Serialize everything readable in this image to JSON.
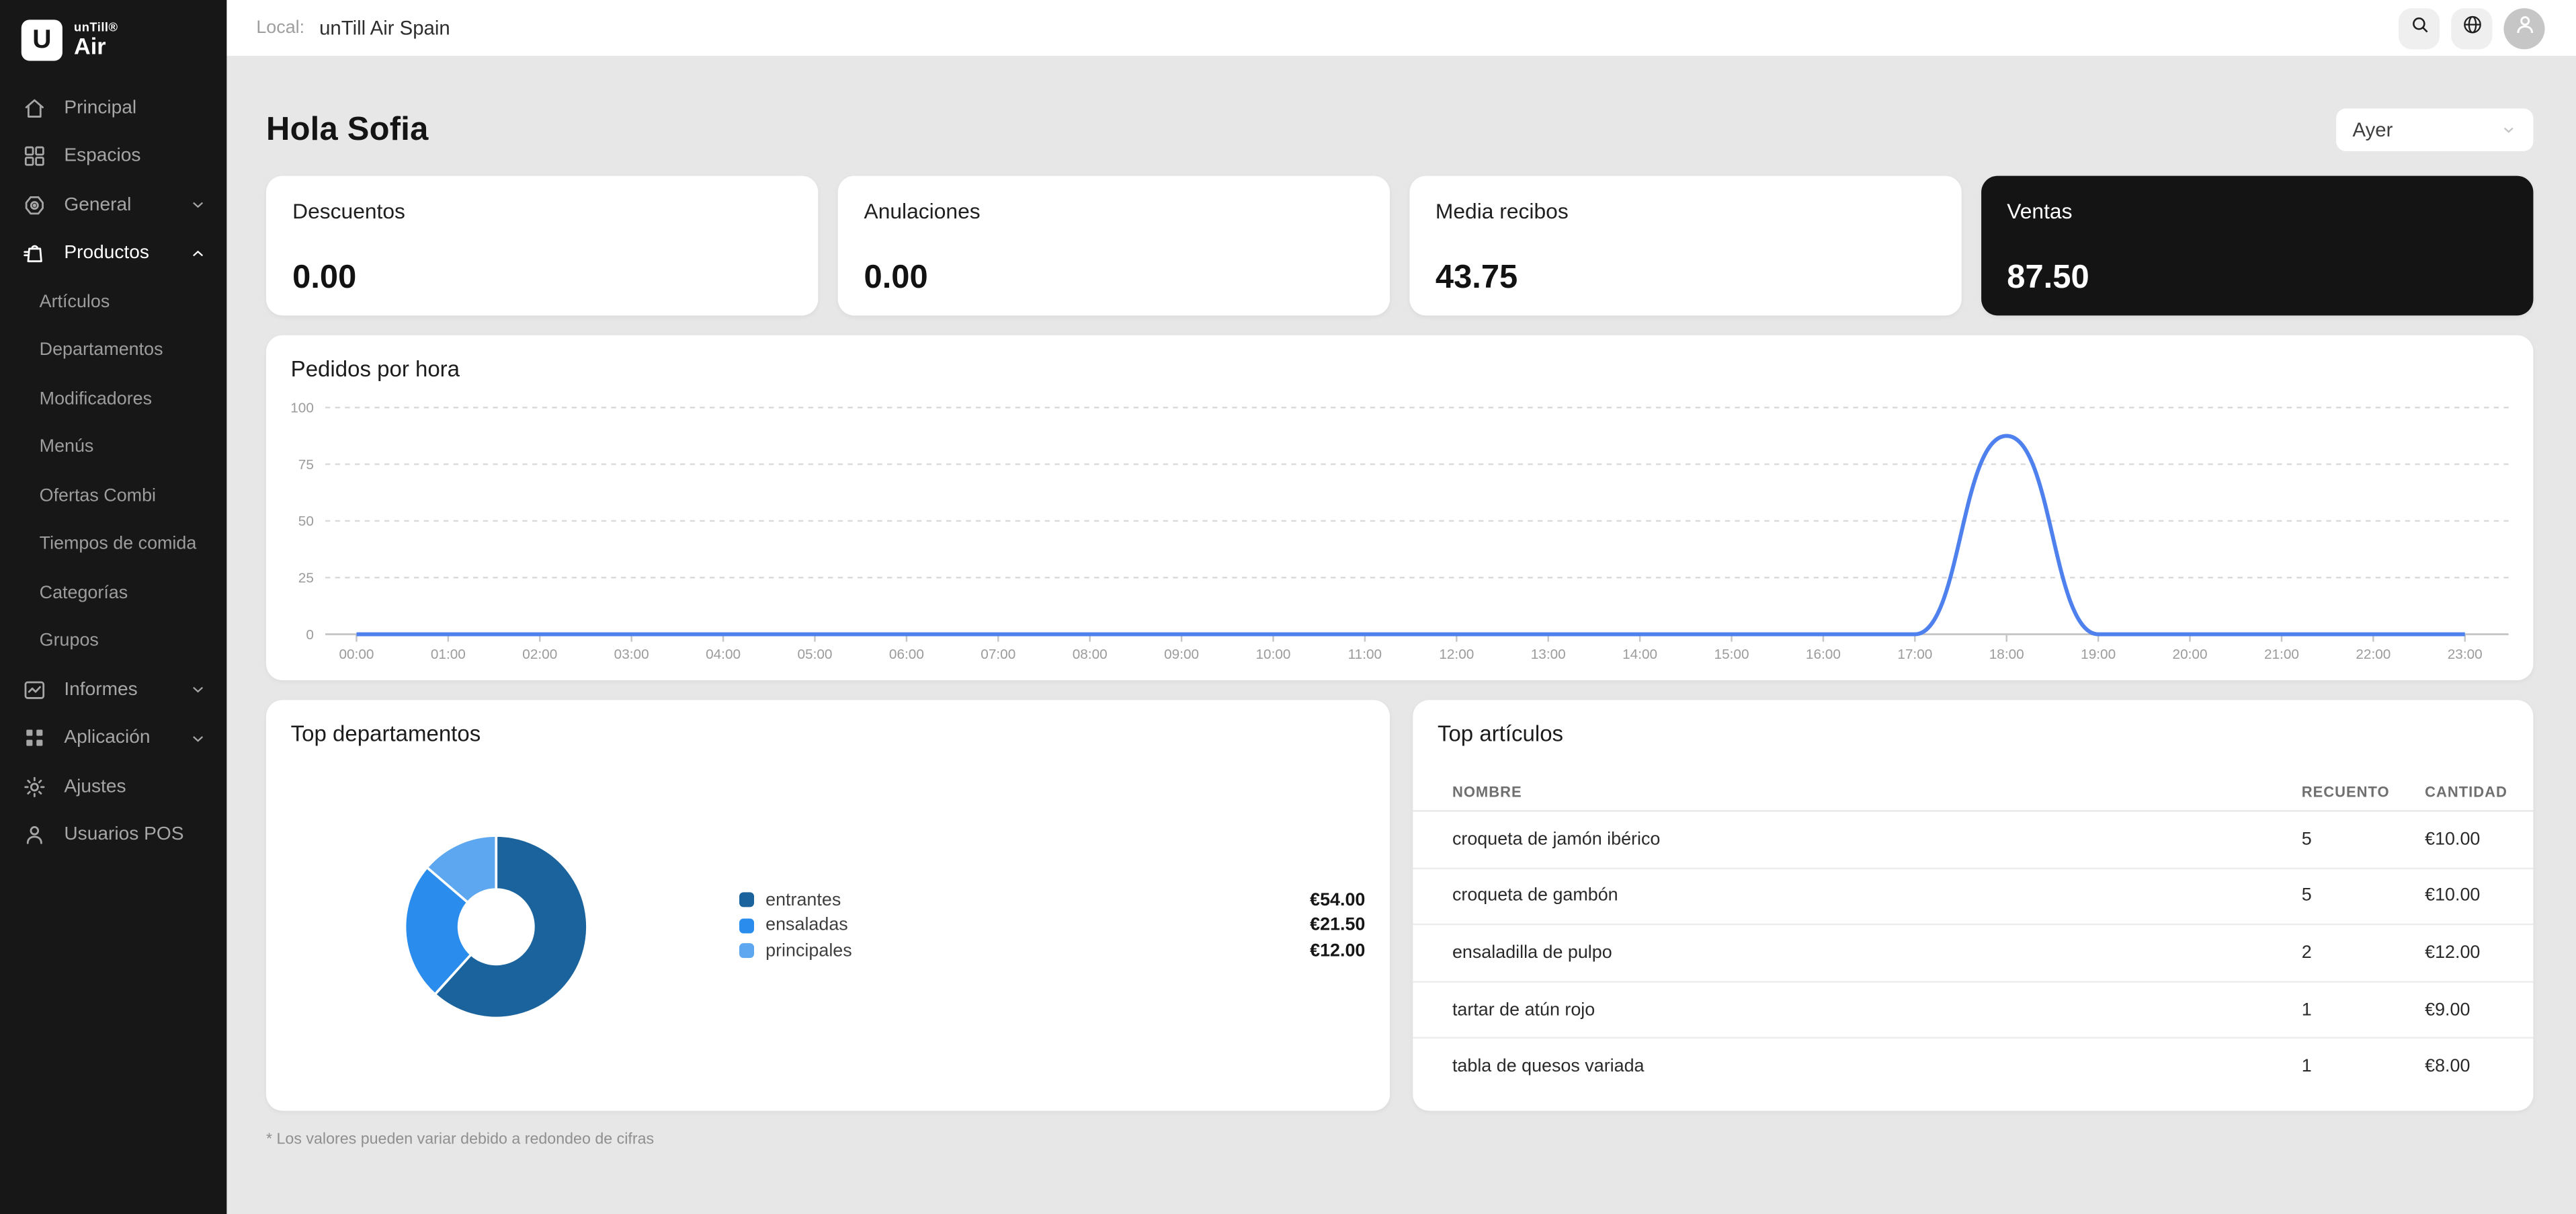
{
  "brand": {
    "logo_letter": "U",
    "name_top": "unTill®",
    "name_bottom": "Air"
  },
  "sidebar": {
    "items": [
      {
        "label": "Principal",
        "icon": "home"
      },
      {
        "label": "Espacios",
        "icon": "layout"
      },
      {
        "label": "General",
        "icon": "target",
        "chevron": "down"
      },
      {
        "label": "Productos",
        "icon": "bag",
        "chevron": "up",
        "active": true,
        "children": [
          "Artículos",
          "Departamentos",
          "Modificadores",
          "Menús",
          "Ofertas Combi",
          "Tiempos de comida",
          "Categorías",
          "Grupos"
        ]
      },
      {
        "label": "Informes",
        "icon": "chart",
        "chevron": "down"
      },
      {
        "label": "Aplicación",
        "icon": "apps",
        "chevron": "down"
      },
      {
        "label": "Ajustes",
        "icon": "gear"
      },
      {
        "label": "Usuarios POS",
        "icon": "user"
      }
    ]
  },
  "topbar": {
    "local_label": "Local:",
    "local_value": "unTill Air Spain",
    "icons": [
      "search",
      "globe",
      "user-avatar"
    ]
  },
  "header": {
    "greeting": "Hola Sofia",
    "period_selector": {
      "value": "Ayer"
    }
  },
  "stat_cards": [
    {
      "label": "Descuentos",
      "value": "0.00",
      "dark": false
    },
    {
      "label": "Anulaciones",
      "value": "0.00",
      "dark": false
    },
    {
      "label": "Media recibos",
      "value": "43.75",
      "dark": false
    },
    {
      "label": "Ventas",
      "value": "87.50",
      "dark": true
    }
  ],
  "chart_data": [
    {
      "type": "line",
      "title": "Pedidos por hora",
      "x": [
        "00:00",
        "01:00",
        "02:00",
        "03:00",
        "04:00",
        "05:00",
        "06:00",
        "07:00",
        "08:00",
        "09:00",
        "10:00",
        "11:00",
        "12:00",
        "13:00",
        "14:00",
        "15:00",
        "16:00",
        "17:00",
        "18:00",
        "19:00",
        "20:00",
        "21:00",
        "22:00",
        "23:00"
      ],
      "series": [
        {
          "name": "Pedidos",
          "values": [
            0,
            0,
            0,
            0,
            0,
            0,
            0,
            0,
            0,
            0,
            0,
            0,
            0,
            0,
            0,
            0,
            0,
            0,
            87.5,
            0,
            0,
            0,
            0,
            0
          ]
        }
      ],
      "ylim": [
        0,
        100
      ],
      "yticks": [
        0,
        25,
        50,
        75,
        100
      ],
      "grid": true,
      "legend": "none",
      "line_color": "#4f81ee",
      "grid_color": "#dadada",
      "axis_color": "#c6c6c6",
      "tick_label_color": "#9b9b9b"
    },
    {
      "type": "pie",
      "title": "Top departamentos",
      "labels": [
        "entrantes",
        "ensaladas",
        "principales"
      ],
      "values": [
        54.0,
        21.5,
        12.0
      ],
      "display_values": [
        "€54.00",
        "€21.50",
        "€12.00"
      ],
      "colors": [
        "#1b639c",
        "#2a8ced",
        "#5ca7ef"
      ],
      "donut_hole_ratio": 0.41,
      "legend": "right"
    }
  ],
  "top_articles": {
    "title": "Top artículos",
    "columns": [
      "NOMBRE",
      "RECUENTO",
      "CANTIDAD"
    ],
    "rows": [
      [
        "croqueta de jamón ibérico",
        "5",
        "€10.00"
      ],
      [
        "croqueta de gambón",
        "5",
        "€10.00"
      ],
      [
        "ensaladilla de pulpo",
        "2",
        "€12.00"
      ],
      [
        "tartar de atún rojo",
        "1",
        "€9.00"
      ],
      [
        "tabla de quesos variada",
        "1",
        "€8.00"
      ]
    ]
  },
  "footnote": "* Los valores pueden variar debido a redondeo de cifras"
}
